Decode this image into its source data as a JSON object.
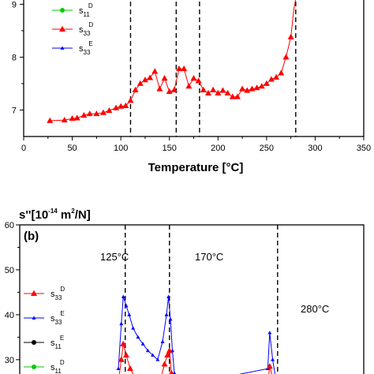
{
  "chart_data": [
    {
      "type": "line",
      "panel": "(a)",
      "xlabel": "Temperature [°C]",
      "xlim": [
        0,
        350
      ],
      "xticks": [
        0,
        50,
        100,
        150,
        200,
        250,
        300,
        350
      ],
      "ylim": [
        6.5,
        9.2
      ],
      "yticks": [
        7,
        8,
        9
      ],
      "vlines": [
        110,
        157,
        181,
        280
      ],
      "legend": [
        {
          "base": "s",
          "sub": "11",
          "sup": "D",
          "color": "#00cc00",
          "marker": "circle"
        },
        {
          "base": "s",
          "sub": "33",
          "sup": "D",
          "color": "#ff0000",
          "marker": "triangle"
        },
        {
          "base": "s",
          "sub": "33",
          "sup": "E",
          "color": "#0000ff",
          "marker": "triangle-small"
        }
      ],
      "series": [
        {
          "name": "s33D",
          "color": "#ff0000",
          "x": [
            27,
            42,
            50,
            55,
            62,
            68,
            75,
            82,
            88,
            95,
            100,
            105,
            110,
            115,
            120,
            125,
            130,
            135,
            140,
            145,
            150,
            155,
            160,
            165,
            170,
            175,
            180,
            185,
            190,
            195,
            200,
            205,
            210,
            215,
            220,
            225,
            230,
            235,
            240,
            245,
            250,
            255,
            260,
            265,
            270,
            275
          ],
          "y": [
            6.8,
            6.81,
            6.84,
            6.85,
            6.9,
            6.93,
            6.93,
            6.95,
            6.99,
            7.04,
            7.07,
            7.08,
            7.18,
            7.38,
            7.5,
            7.57,
            7.61,
            7.73,
            7.4,
            7.6,
            7.35,
            7.38,
            7.78,
            7.78,
            7.45,
            7.6,
            7.55,
            7.38,
            7.32,
            7.38,
            7.32,
            7.37,
            7.32,
            7.25,
            7.25,
            7.4,
            7.37,
            7.4,
            7.42,
            7.45,
            7.5,
            7.58,
            7.62,
            7.7,
            8.0,
            8.38
          ]
        },
        {
          "name": "s33D-rise",
          "color": "#ff0000",
          "x": [
            275,
            278,
            281
          ],
          "y": [
            8.38,
            8.9,
            9.2
          ]
        }
      ]
    },
    {
      "type": "line",
      "panel": "(b)",
      "title_prefix": "s''[10",
      "title_exp": "-14",
      "title_mid": " m",
      "title_exp2": "2",
      "title_suffix": "/N]",
      "xlim": [
        0,
        350
      ],
      "ylim": [
        24,
        60
      ],
      "yticks": [
        30,
        40,
        50,
        60
      ],
      "vlines": [
        125,
        170,
        280
      ],
      "annotations": [
        {
          "text": "125°C",
          "at": 125
        },
        {
          "text": "170°C",
          "at": 170
        },
        {
          "text": "280°C",
          "at": 280
        }
      ],
      "legend": [
        {
          "base": "s",
          "sub": "33",
          "sup": "D",
          "color": "#ff0000",
          "marker": "triangle"
        },
        {
          "base": "s",
          "sub": "33",
          "sup": "E",
          "color": "#0000ff",
          "marker": "triangle-small"
        },
        {
          "base": "s",
          "sub": "11",
          "sup": "E",
          "color": "#000000",
          "marker": "circle"
        },
        {
          "base": "s",
          "sub": "11",
          "sup": "D",
          "color": "#00cc00",
          "marker": "circle"
        }
      ],
      "series": [
        {
          "name": "s33E",
          "color": "#0000ff",
          "x": [
            118,
            121,
            123,
            126,
            129,
            133,
            138,
            143,
            148,
            153,
            158,
            163,
            167,
            169,
            171,
            173,
            175,
            178,
            270,
            272,
            275,
            278
          ],
          "y": [
            28,
            38,
            44,
            42,
            40,
            37,
            35,
            33.5,
            32,
            31,
            30,
            34,
            40,
            44,
            39,
            32,
            27,
            24,
            28,
            36,
            30,
            26
          ]
        },
        {
          "name": "s33D",
          "color": "#ff0000",
          "x": [
            118,
            121,
            123,
            126,
            130,
            135,
            140,
            150,
            160,
            165,
            168,
            170,
            172,
            175,
            270,
            272,
            275,
            278
          ],
          "y": [
            25,
            30,
            33.5,
            31,
            28,
            26,
            25,
            24.5,
            25,
            29,
            31,
            32,
            27,
            24.5,
            24.5,
            28.5,
            26,
            24.5
          ]
        }
      ]
    }
  ]
}
